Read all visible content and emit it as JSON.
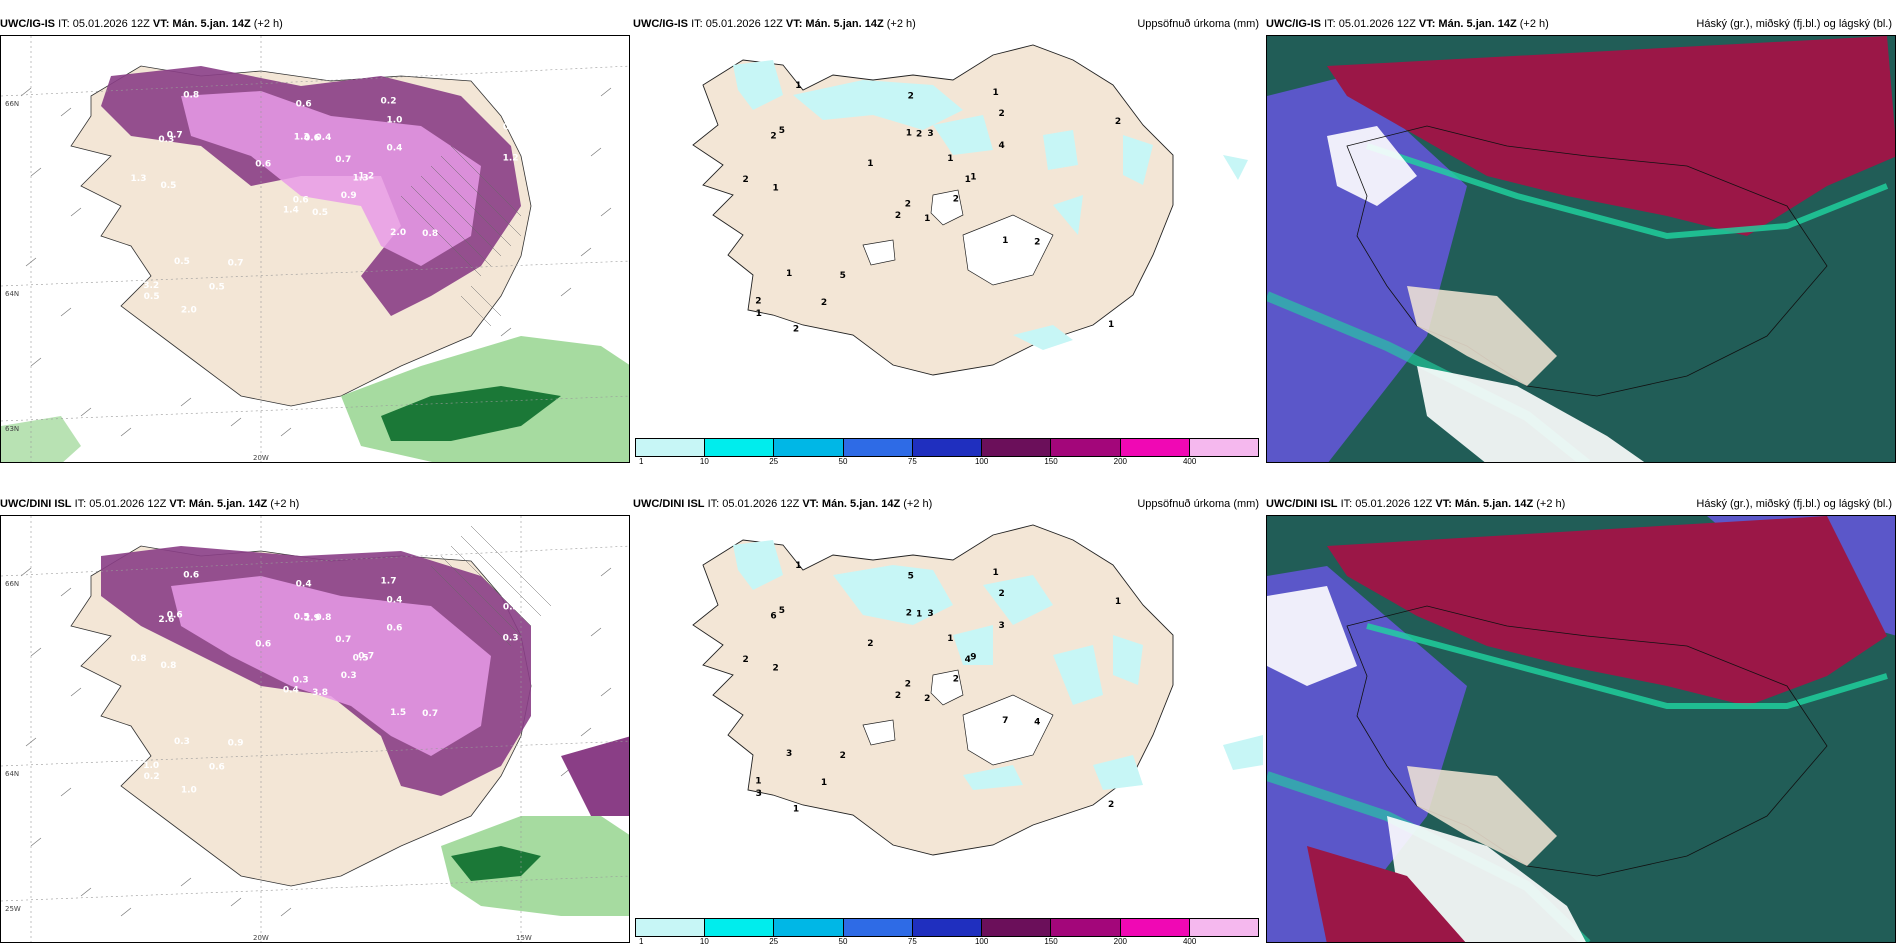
{
  "colors": {
    "land": "#f3e6d6",
    "sea": "#ffffff",
    "precip_light": "#e79ae8",
    "precip_heavy": "#8a3e86",
    "green_light": "#a6dba0",
    "green_dark": "#1b7837",
    "cloud_high": "#9b1747",
    "cloud_mid": "#215d57",
    "cloud_low": "#5b57c9",
    "cloud_edge": "#1fd6a0"
  },
  "rows": [
    {
      "model": "UWC/IG-IS",
      "it": "IT: 05.01.2026 12Z",
      "vt": "VT: Mán. 5.jan. 14Z",
      "offset": "(+2 h)",
      "precip_title": "Uppsöfnuð úrkoma (mm)",
      "cloud_title": "Háský (gr.), miðský (fj.bl.) og lágský (bl.)",
      "lat_labels": [
        "66N",
        "64N",
        "63N"
      ],
      "lon_labels": [
        "20W"
      ],
      "left_values": [
        "0.5",
        "0.3",
        "0.6",
        "3.2",
        "1.3",
        "0.7",
        "0.2",
        "0.4",
        "1.0",
        "0.9",
        "0.8",
        "0.6",
        "0.5",
        "0.3",
        "1.4",
        "0.4",
        "2.0",
        "1.3",
        "0.7",
        "0.5",
        "0.6",
        "0.5",
        "0.5",
        "0.6",
        "1.2",
        "0.8",
        "0.7",
        "0.6",
        "1.3",
        "2.0",
        "1.2"
      ],
      "mid_values": [
        "1",
        "2",
        "2",
        "2",
        "1",
        "5",
        "1",
        "3",
        "2",
        "2",
        "1",
        "1",
        "1",
        "2",
        "2",
        "4",
        "2",
        "1",
        "1",
        "1",
        "1",
        "1",
        "2",
        "2",
        "1",
        "2",
        "5",
        "2",
        "2",
        "1"
      ]
    },
    {
      "model": "UWC/DINI ISL",
      "it": "IT: 05.01.2026 12Z",
      "vt": "VT: Mán. 5.jan. 14Z",
      "offset": "(+2 h)",
      "precip_title": "Uppsöfnuð úrkoma (mm)",
      "cloud_title": "Háský (gr.), miðský (fj.bl.) og lágský (bl.)",
      "lat_labels": [
        "66N",
        "64N",
        "25W"
      ],
      "lon_labels": [
        "20W",
        "15W"
      ],
      "left_values": [
        "3.8",
        "2.6",
        "0.3",
        "1.0",
        "0.5",
        "0.9",
        "1.7",
        "0.8",
        "0.4",
        "0.3",
        "0.6",
        "1.2",
        "0.8",
        "0.3",
        "0.4",
        "0.6",
        "1.0",
        "0.5",
        "0.7",
        "0.3",
        "0.6",
        "0.2",
        "0.6",
        "2.9",
        "0.7",
        "0.7",
        "0.6",
        "0.4",
        "0.8",
        "1.5",
        "0.3"
      ],
      "mid_values": [
        "2",
        "6",
        "2",
        "1",
        "4",
        "2",
        "1",
        "3",
        "2",
        "2",
        "1",
        "2",
        "2",
        "1",
        "2",
        "3",
        "1",
        "2",
        "1",
        "3",
        "2",
        "3",
        "1",
        "1",
        "9",
        "4",
        "5",
        "5",
        "2",
        "7"
      ]
    }
  ],
  "colorbar": {
    "colors": [
      "#c7f6f6",
      "#00eded",
      "#00b7e6",
      "#2e6be6",
      "#1f2fbf",
      "#6b0f5a",
      "#a3067a",
      "#f008b4",
      "#f5b8ee"
    ],
    "ticks": [
      "1",
      "10",
      "25",
      "50",
      "75",
      "100",
      "150",
      "200",
      "400"
    ]
  }
}
